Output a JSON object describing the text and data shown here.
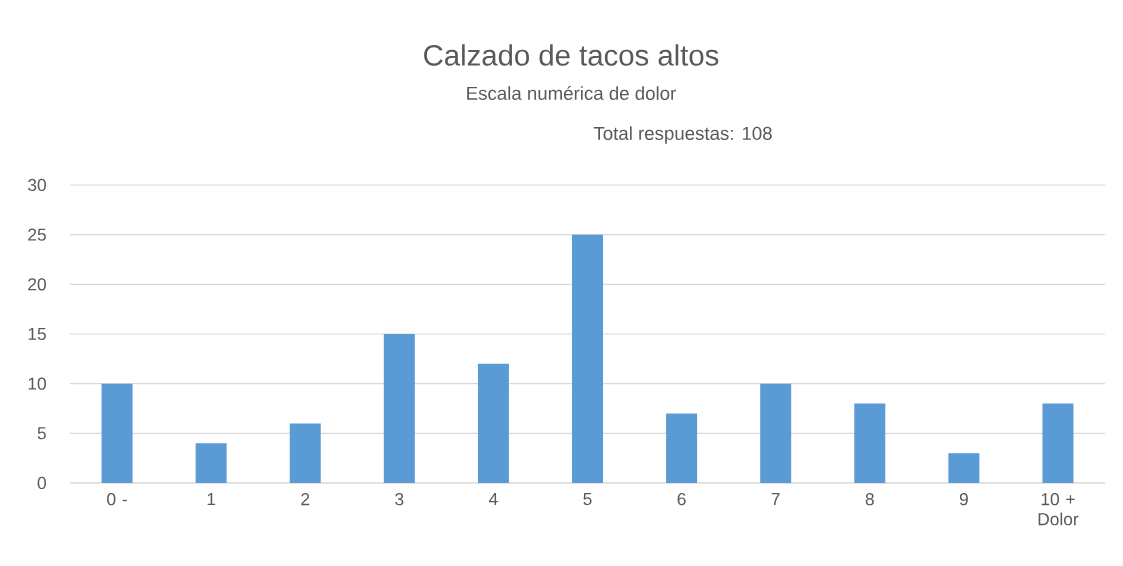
{
  "chart_data": {
    "type": "bar",
    "title": "Calzado de tacos altos",
    "subtitle": "Escala numérica de dolor",
    "annotations": [
      "Total respuestas: 108"
    ],
    "categories": [
      "0 -",
      "1",
      "2",
      "3",
      "4",
      "5",
      "6",
      "7",
      "8",
      "9",
      "10 + Dolor"
    ],
    "values": [
      10,
      4,
      6,
      15,
      12,
      25,
      7,
      10,
      8,
      3,
      8
    ],
    "color": "#5b9bd5",
    "ylim": [
      0,
      30
    ],
    "yticks": [
      0,
      5,
      10,
      15,
      20,
      25,
      30
    ],
    "grid": "y"
  }
}
